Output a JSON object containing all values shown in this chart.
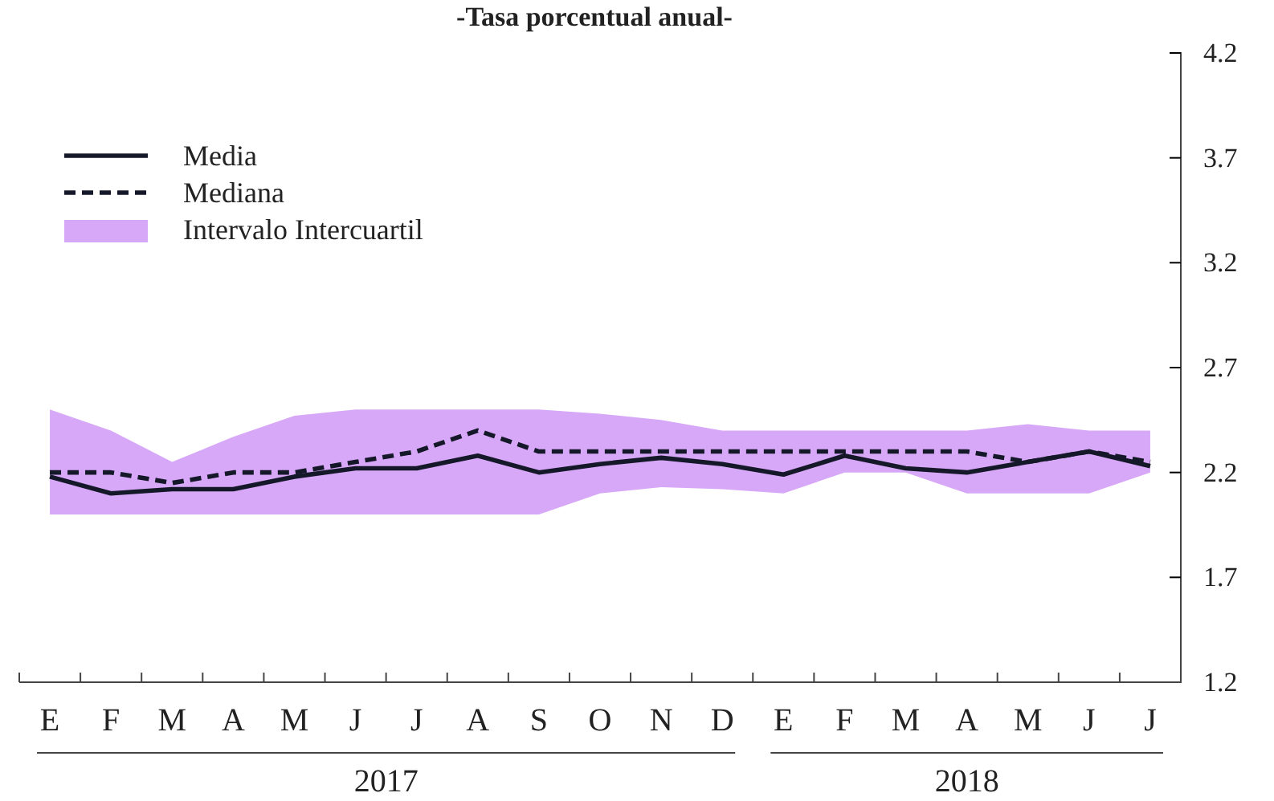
{
  "chart_data": {
    "type": "line",
    "title": "-Tasa porcentual anual-",
    "categories": [
      "E",
      "F",
      "M",
      "A",
      "M",
      "J",
      "J",
      "A",
      "S",
      "O",
      "N",
      "D",
      "E",
      "F",
      "M",
      "A",
      "M",
      "J",
      "J"
    ],
    "series": [
      {
        "name": "Intervalo Intercuartil",
        "color": "#d8a8f8",
        "values": [
          null,
          null,
          null,
          null,
          null,
          null,
          null,
          null,
          null,
          null,
          null,
          null,
          null,
          null,
          null,
          null,
          null,
          null,
          null
        ],
        "lower": [
          2.0,
          2.0,
          2.0,
          2.0,
          2.0,
          2.0,
          2.0,
          2.0,
          2.0,
          2.1,
          2.13,
          2.12,
          2.1,
          2.2,
          2.2,
          2.1,
          2.1,
          2.1,
          2.2
        ],
        "upper": [
          2.5,
          2.4,
          2.25,
          2.37,
          2.47,
          2.5,
          2.5,
          2.5,
          2.5,
          2.48,
          2.45,
          2.4,
          2.4,
          2.4,
          2.4,
          2.4,
          2.43,
          2.4,
          2.4
        ]
      },
      {
        "name": "Media",
        "color": "#141828",
        "line_style": "solid",
        "values": [
          2.18,
          2.1,
          2.12,
          2.12,
          2.18,
          2.22,
          2.22,
          2.28,
          2.2,
          2.24,
          2.27,
          2.24,
          2.19,
          2.28,
          2.22,
          2.2,
          2.25,
          2.3,
          2.23
        ]
      },
      {
        "name": "Mediana",
        "color": "#141828",
        "line_style": "dashed",
        "values": [
          2.2,
          2.2,
          2.15,
          2.2,
          2.2,
          2.25,
          2.3,
          2.4,
          2.3,
          2.3,
          2.3,
          2.3,
          2.3,
          2.3,
          2.3,
          2.3,
          2.25,
          2.3,
          2.25
        ]
      }
    ],
    "ylim": [
      1.2,
      4.2
    ],
    "yticks": [
      1.2,
      1.7,
      2.2,
      2.7,
      3.2,
      3.7,
      4.2
    ],
    "annotations": [
      "2017",
      "2018"
    ],
    "grid": false,
    "legend": "top left",
    "marker": "none"
  }
}
